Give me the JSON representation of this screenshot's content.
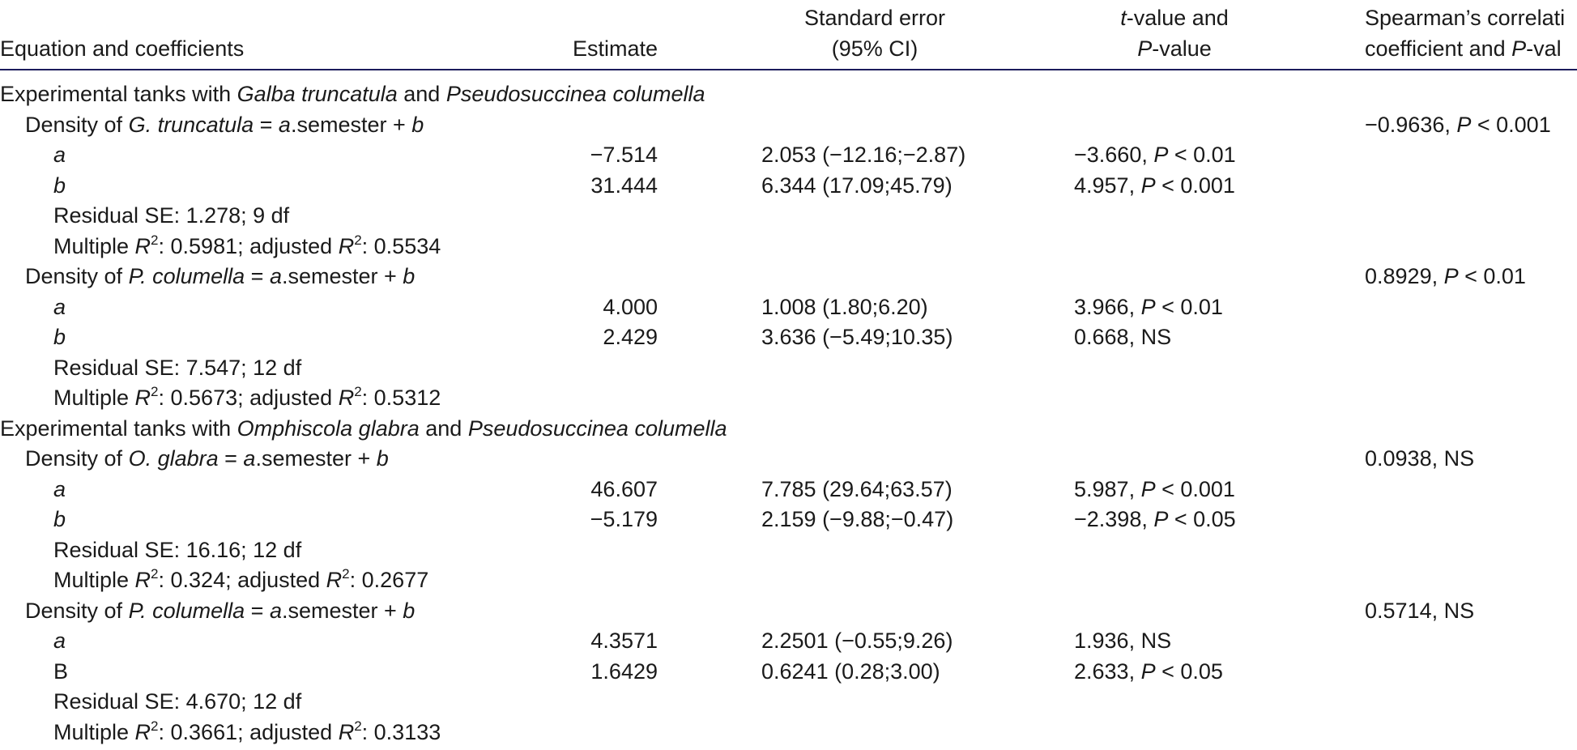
{
  "header": {
    "columns": [
      {
        "lines": [
          [
            "Equation and coefficients"
          ]
        ]
      },
      {
        "lines": [
          [
            "Estimate"
          ]
        ]
      },
      {
        "lines": [
          [
            "Standard error"
          ],
          [
            "(95% CI)"
          ]
        ]
      },
      {
        "lines": [
          [
            {
              "italic": "t"
            },
            "-value and"
          ],
          [
            {
              "italic": "P"
            },
            "-value"
          ]
        ]
      },
      {
        "lines": [
          [
            "Spearman’s correlati"
          ],
          [
            "coefficient and ",
            {
              "italic": "P"
            },
            "-val"
          ]
        ]
      }
    ]
  },
  "groups": [
    {
      "title": [
        "Experimental tanks with ",
        {
          "italic": "Galba truncatula"
        },
        " and ",
        {
          "italic": "Pseudosuccinea columella"
        }
      ],
      "equations": [
        {
          "label": [
            "Density of ",
            {
              "italic": "G. truncatula"
            },
            " = ",
            {
              "italic": "a"
            },
            ".semester + ",
            {
              "italic": "b"
            }
          ],
          "spearman": [
            "−0.9636, ",
            {
              "italic": "P"
            },
            " < 0.001"
          ],
          "coefficients": [
            {
              "name": [
                {
                  "italic": "a"
                }
              ],
              "estimate": "−7.514",
              "se": "2.053 (−12.16;−2.87)",
              "t": [
                "−3.660, ",
                {
                  "italic": "P"
                },
                " < 0.01"
              ]
            },
            {
              "name": [
                {
                  "italic": "b"
                }
              ],
              "estimate": "31.444",
              "se": "6.344 (17.09;45.79)",
              "t": [
                "4.957, ",
                {
                  "italic": "P"
                },
                " < 0.001"
              ]
            }
          ],
          "residual": "Residual SE: 1.278; 9 df",
          "multiple": [
            "Multiple ",
            {
              "italic": "R"
            },
            {
              "sup": "2"
            },
            ": 0.5981; adjusted ",
            {
              "italic": "R"
            },
            {
              "sup": "2"
            },
            ": 0.5534"
          ]
        },
        {
          "label": [
            "Density of ",
            {
              "italic": "P. columella"
            },
            " = ",
            {
              "italic": "a"
            },
            ".semester + ",
            {
              "italic": "b"
            }
          ],
          "spearman": [
            "0.8929, ",
            {
              "italic": "P"
            },
            " < 0.01"
          ],
          "coefficients": [
            {
              "name": [
                {
                  "italic": "a"
                }
              ],
              "estimate": "4.000",
              "se": "1.008 (1.80;6.20)",
              "t": [
                "3.966, ",
                {
                  "italic": "P"
                },
                " < 0.01"
              ]
            },
            {
              "name": [
                {
                  "italic": "b"
                }
              ],
              "estimate": "2.429",
              "se": "3.636 (−5.49;10.35)",
              "t": "0.668, NS"
            }
          ],
          "residual": "Residual SE: 7.547; 12 df",
          "multiple": [
            "Multiple ",
            {
              "italic": "R"
            },
            {
              "sup": "2"
            },
            ": 0.5673; adjusted ",
            {
              "italic": "R"
            },
            {
              "sup": "2"
            },
            ": 0.5312"
          ]
        }
      ]
    },
    {
      "title": [
        "Experimental tanks with ",
        {
          "italic": "Omphiscola glabra"
        },
        " and ",
        {
          "italic": "Pseudosuccinea columella"
        }
      ],
      "equations": [
        {
          "label": [
            "Density of ",
            {
              "italic": "O. glabra"
            },
            " = ",
            {
              "italic": "a"
            },
            ".semester + ",
            {
              "italic": "b"
            }
          ],
          "spearman": "0.0938, NS",
          "coefficients": [
            {
              "name": [
                {
                  "italic": "a"
                }
              ],
              "estimate": "46.607",
              "se": "7.785 (29.64;63.57)",
              "t": [
                "5.987, ",
                {
                  "italic": "P"
                },
                " < 0.001"
              ]
            },
            {
              "name": [
                {
                  "italic": "b"
                }
              ],
              "estimate": "−5.179",
              "se": "2.159 (−9.88;−0.47)",
              "t": [
                "−2.398, ",
                {
                  "italic": "P"
                },
                " < 0.05"
              ]
            }
          ],
          "residual": "Residual SE: 16.16; 12 df",
          "multiple": [
            "Multiple ",
            {
              "italic": "R"
            },
            {
              "sup": "2"
            },
            ": 0.324; adjusted ",
            {
              "italic": "R"
            },
            {
              "sup": "2"
            },
            ": 0.2677"
          ]
        },
        {
          "label": [
            "Density of ",
            {
              "italic": "P. columella"
            },
            " = ",
            {
              "italic": "a"
            },
            ".semester + ",
            {
              "italic": "b"
            }
          ],
          "spearman": "0.5714, NS",
          "coefficients": [
            {
              "name": [
                {
                  "italic": "a"
                }
              ],
              "estimate": "4.3571",
              "se": "2.2501 (−0.55;9.26)",
              "t": "1.936, NS"
            },
            {
              "name": [
                "B"
              ],
              "estimate": "1.6429",
              "se": "0.6241 (0.28;3.00)",
              "t": [
                "2.633, ",
                {
                  "italic": "P"
                },
                " < 0.05"
              ]
            }
          ],
          "residual": "Residual SE: 4.670; 12 df",
          "multiple": [
            "Multiple ",
            {
              "italic": "R"
            },
            {
              "sup": "2"
            },
            ": 0.3661; adjusted ",
            {
              "italic": "R"
            },
            {
              "sup": "2"
            },
            ": 0.3133"
          ]
        }
      ]
    }
  ]
}
